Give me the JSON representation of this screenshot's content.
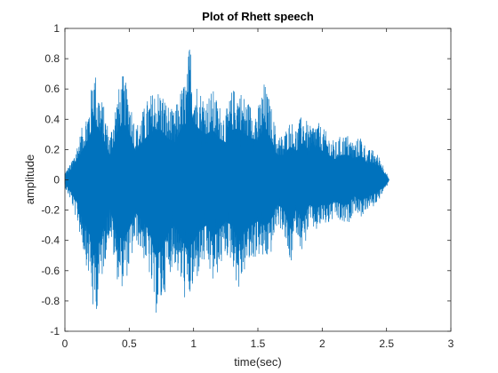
{
  "chart_data": {
    "type": "line",
    "title": "Plot of Rhett speech",
    "xlabel": "time(sec)",
    "ylabel": "amplitude",
    "xlim": [
      0,
      3
    ],
    "ylim": [
      -1,
      1
    ],
    "x_ticks": [
      0,
      0.5,
      1,
      1.5,
      2,
      2.5,
      3
    ],
    "x_tick_labels": [
      "0",
      "0.5",
      "1",
      "1.5",
      "2",
      "2.5",
      "3"
    ],
    "y_ticks": [
      -1,
      -0.8,
      -0.6,
      -0.4,
      -0.2,
      0,
      0.2,
      0.4,
      0.6,
      0.8,
      1
    ],
    "y_tick_labels": [
      "-1",
      "-0.8",
      "-0.6",
      "-0.4",
      "-0.2",
      "0",
      "0.2",
      "0.4",
      "0.6",
      "0.8",
      "1"
    ],
    "grid": false,
    "series": [
      {
        "color": "#0072BD",
        "envelope": {
          "t": [
            0.0,
            0.05,
            0.1,
            0.15,
            0.2,
            0.22,
            0.25,
            0.3,
            0.35,
            0.4,
            0.45,
            0.5,
            0.55,
            0.6,
            0.65,
            0.7,
            0.75,
            0.8,
            0.85,
            0.9,
            0.95,
            0.97,
            1.0,
            1.05,
            1.1,
            1.15,
            1.2,
            1.25,
            1.3,
            1.35,
            1.4,
            1.45,
            1.5,
            1.55,
            1.6,
            1.65,
            1.7,
            1.75,
            1.8,
            1.85,
            1.9,
            1.95,
            2.0,
            2.05,
            2.1,
            2.15,
            2.2,
            2.25,
            2.3,
            2.35,
            2.4,
            2.45,
            2.5,
            2.52
          ],
          "upper": [
            0.05,
            0.12,
            0.25,
            0.4,
            0.55,
            0.8,
            0.65,
            0.5,
            0.3,
            0.55,
            0.7,
            0.58,
            0.35,
            0.45,
            0.55,
            0.6,
            0.6,
            0.5,
            0.45,
            0.6,
            0.7,
            0.95,
            0.7,
            0.6,
            0.55,
            0.6,
            0.5,
            0.45,
            0.6,
            0.62,
            0.55,
            0.5,
            0.48,
            0.65,
            0.5,
            0.3,
            0.3,
            0.4,
            0.35,
            0.45,
            0.35,
            0.4,
            0.35,
            0.3,
            0.25,
            0.3,
            0.3,
            0.25,
            0.3,
            0.2,
            0.2,
            0.15,
            0.05,
            0.0
          ],
          "lower": [
            -0.05,
            -0.15,
            -0.3,
            -0.5,
            -0.7,
            -0.92,
            -0.85,
            -0.6,
            -0.35,
            -0.65,
            -0.72,
            -0.6,
            -0.4,
            -0.5,
            -0.6,
            -0.9,
            -0.85,
            -0.65,
            -0.55,
            -0.7,
            -0.85,
            -0.8,
            -0.75,
            -0.6,
            -0.55,
            -0.7,
            -0.6,
            -0.5,
            -0.55,
            -0.75,
            -0.6,
            -0.55,
            -0.5,
            -0.55,
            -0.5,
            -0.3,
            -0.35,
            -0.6,
            -0.35,
            -0.5,
            -0.3,
            -0.35,
            -0.3,
            -0.3,
            -0.25,
            -0.3,
            -0.3,
            -0.2,
            -0.25,
            -0.2,
            -0.18,
            -0.12,
            -0.05,
            0.0
          ]
        }
      }
    ]
  }
}
